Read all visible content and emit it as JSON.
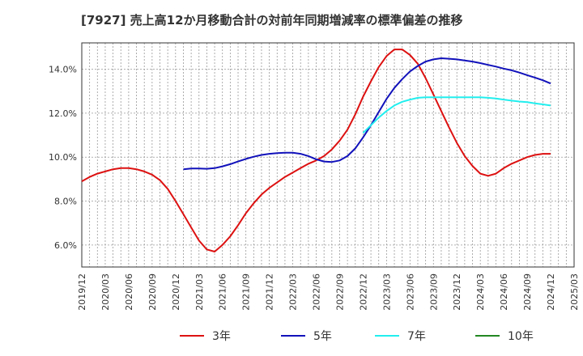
{
  "chart_data": {
    "type": "line",
    "title": "[7927]  売上高12か月移動合計の対前年同期増減率の標準偏差の推移",
    "xlabel": "",
    "ylabel": "",
    "x_start": "2019/12",
    "x_end": "2025/03",
    "x_ticks": [
      "2019/12",
      "2020/03",
      "2020/06",
      "2020/09",
      "2020/12",
      "2021/03",
      "2021/06",
      "2021/09",
      "2021/12",
      "2022/03",
      "2022/06",
      "2022/09",
      "2022/12",
      "2023/03",
      "2023/06",
      "2023/09",
      "2023/12",
      "2024/03",
      "2024/06",
      "2024/09",
      "2024/12",
      "2025/03"
    ],
    "ylim": [
      5.0,
      15.2
    ],
    "y_ticks": [
      6.0,
      8.0,
      10.0,
      12.0,
      14.0
    ],
    "y_tick_labels": [
      "6.0%",
      "8.0%",
      "10.0%",
      "12.0%",
      "14.0%"
    ],
    "grid": true,
    "legend_position": "bottom",
    "series": [
      {
        "name": "3年",
        "color": "#dd1111",
        "x": [
          "2019/12",
          "2020/01",
          "2020/02",
          "2020/03",
          "2020/04",
          "2020/05",
          "2020/06",
          "2020/07",
          "2020/08",
          "2020/09",
          "2020/10",
          "2020/11",
          "2020/12",
          "2021/01",
          "2021/02",
          "2021/03",
          "2021/04",
          "2021/05",
          "2021/06",
          "2021/07",
          "2021/08",
          "2021/09",
          "2021/10",
          "2021/11",
          "2021/12",
          "2022/01",
          "2022/02",
          "2022/03",
          "2022/04",
          "2022/05",
          "2022/06",
          "2022/07",
          "2022/08",
          "2022/09",
          "2022/10",
          "2022/11",
          "2022/12",
          "2023/01",
          "2023/02",
          "2023/03",
          "2023/04",
          "2023/05",
          "2023/06",
          "2023/07",
          "2023/08",
          "2023/09",
          "2023/10",
          "2023/11",
          "2023/12",
          "2024/01",
          "2024/02",
          "2024/03",
          "2024/04",
          "2024/05",
          "2024/06",
          "2024/07",
          "2024/08",
          "2024/09",
          "2024/10",
          "2024/11",
          "2024/12"
        ],
        "values": [
          8.9,
          9.1,
          9.25,
          9.35,
          9.45,
          9.5,
          9.5,
          9.45,
          9.35,
          9.2,
          8.95,
          8.55,
          8.0,
          7.4,
          6.8,
          6.2,
          5.8,
          5.7,
          6.0,
          6.4,
          6.9,
          7.45,
          7.9,
          8.3,
          8.6,
          8.85,
          9.1,
          9.3,
          9.5,
          9.7,
          9.85,
          10.05,
          10.35,
          10.75,
          11.25,
          11.95,
          12.75,
          13.45,
          14.1,
          14.6,
          14.9,
          14.9,
          14.65,
          14.25,
          13.6,
          12.85,
          12.1,
          11.35,
          10.65,
          10.05,
          9.6,
          9.25,
          9.15,
          9.25,
          9.5,
          9.7,
          9.85,
          10.0,
          10.1,
          10.15,
          10.15
        ]
      },
      {
        "name": "5年",
        "color": "#1111bb",
        "x": [
          "2021/01",
          "2021/02",
          "2021/03",
          "2021/04",
          "2021/05",
          "2021/06",
          "2021/07",
          "2021/08",
          "2021/09",
          "2021/10",
          "2021/11",
          "2021/12",
          "2022/01",
          "2022/02",
          "2022/03",
          "2022/04",
          "2022/05",
          "2022/06",
          "2022/07",
          "2022/08",
          "2022/09",
          "2022/10",
          "2022/11",
          "2022/12",
          "2023/01",
          "2023/02",
          "2023/03",
          "2023/04",
          "2023/05",
          "2023/06",
          "2023/07",
          "2023/08",
          "2023/09",
          "2023/10",
          "2023/11",
          "2023/12",
          "2024/01",
          "2024/02",
          "2024/03",
          "2024/04",
          "2024/05",
          "2024/06",
          "2024/07",
          "2024/08",
          "2024/09",
          "2024/10",
          "2024/11",
          "2024/12"
        ],
        "values": [
          9.45,
          9.48,
          9.48,
          9.47,
          9.5,
          9.58,
          9.68,
          9.8,
          9.92,
          10.02,
          10.1,
          10.15,
          10.18,
          10.2,
          10.2,
          10.15,
          10.05,
          9.9,
          9.8,
          9.78,
          9.85,
          10.05,
          10.4,
          10.9,
          11.45,
          12.05,
          12.65,
          13.15,
          13.55,
          13.9,
          14.15,
          14.35,
          14.45,
          14.5,
          14.48,
          14.45,
          14.4,
          14.35,
          14.28,
          14.2,
          14.12,
          14.03,
          13.95,
          13.85,
          13.73,
          13.62,
          13.5,
          13.35
        ]
      },
      {
        "name": "7年",
        "color": "#22eeee",
        "x": [
          "2022/12",
          "2023/01",
          "2023/02",
          "2023/03",
          "2023/04",
          "2023/05",
          "2023/06",
          "2023/07",
          "2023/08",
          "2023/09",
          "2023/10",
          "2023/11",
          "2023/12",
          "2024/01",
          "2024/02",
          "2024/03",
          "2024/04",
          "2024/05",
          "2024/06",
          "2024/07",
          "2024/08",
          "2024/09",
          "2024/10",
          "2024/11",
          "2024/12"
        ],
        "values": [
          11.1,
          11.45,
          11.8,
          12.1,
          12.35,
          12.52,
          12.62,
          12.7,
          12.72,
          12.72,
          12.72,
          12.72,
          12.72,
          12.72,
          12.72,
          12.72,
          12.7,
          12.67,
          12.62,
          12.57,
          12.53,
          12.5,
          12.45,
          12.4,
          12.35
        ]
      },
      {
        "name": "10年",
        "color": "#228822",
        "x": [],
        "values": []
      }
    ]
  }
}
